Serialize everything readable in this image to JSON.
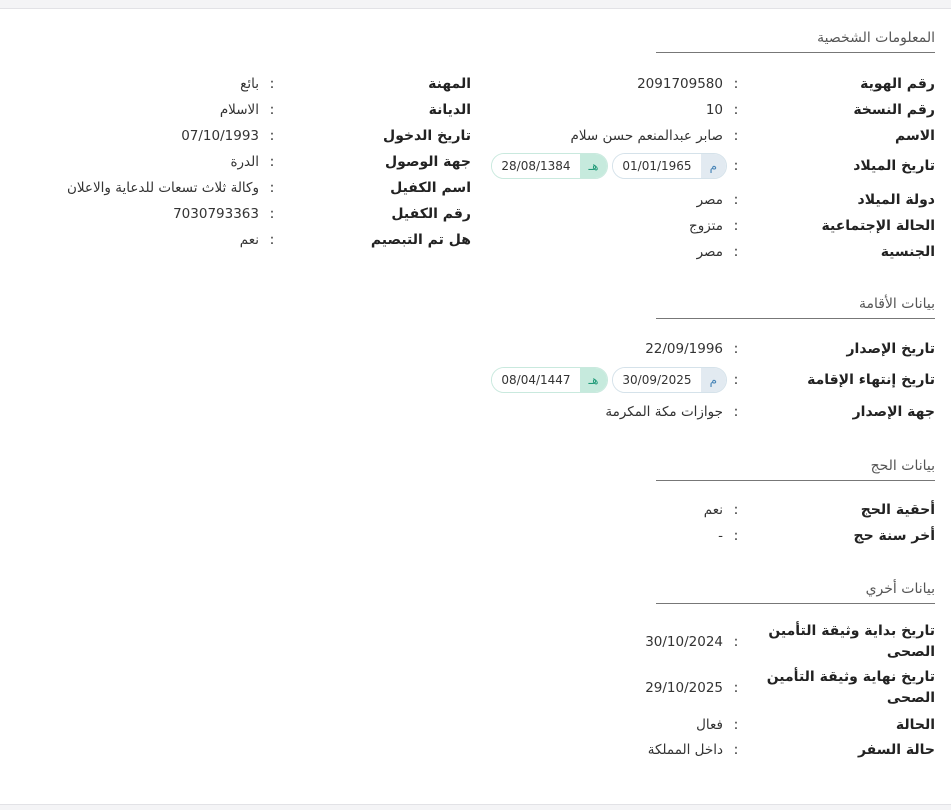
{
  "personal": {
    "title": "المعلومات الشخصية",
    "right": [
      {
        "label": "رقم الهوية",
        "value": "2091709580"
      },
      {
        "label": "رقم النسخة",
        "value": "10"
      },
      {
        "label": "الاسم",
        "value": "صابر عبدالمنعم حسن سلام"
      },
      {
        "label": "تاريخ الميلاد",
        "gregorian": "01/01/1965",
        "hijri": "28/08/1384"
      },
      {
        "label": "دولة الميلاد",
        "value": "مصر"
      },
      {
        "label": "الحالة الإجتماعية",
        "value": "متزوج"
      },
      {
        "label": "الجنسية",
        "value": "مصر"
      }
    ],
    "left": [
      {
        "label": "المهنة",
        "value": "بائع"
      },
      {
        "label": "الديانة",
        "value": "الاسلام"
      },
      {
        "label": "تاريخ الدخول",
        "value": "07/10/1993"
      },
      {
        "label": "جهة الوصول",
        "value": "الدرة"
      },
      {
        "label": "اسم الكفيل",
        "value": "وكالة ثلاث تسعات للدعاية والاعلان"
      },
      {
        "label": "رقم الكفيل",
        "value": "7030793363"
      },
      {
        "label": "هل تم التبصيم",
        "value": "نعم"
      }
    ]
  },
  "residence": {
    "title": "بيانات الأقامة",
    "rows": [
      {
        "label": "تاريخ الإصدار",
        "value": "22/09/1996"
      },
      {
        "label": "تاريخ إنتهاء الإقامة",
        "gregorian": "30/09/2025",
        "hijri": "08/04/1447"
      },
      {
        "label": "جهة الإصدار",
        "value": "جوازات مكة المكرمة"
      }
    ]
  },
  "hajj": {
    "title": "بيانات الحج",
    "rows": [
      {
        "label": "أحقية الحج",
        "value": "نعم"
      },
      {
        "label": "أخر سنة حج",
        "value": "-"
      }
    ]
  },
  "other": {
    "title": "بيانات أخري",
    "rows": [
      {
        "label": "تاريخ بداية وثيقة التأمين الصحى",
        "value": "30/10/2024"
      },
      {
        "label": "تاريخ نهاية وثيقة التأمين الصحى",
        "value": "29/10/2025"
      },
      {
        "label": "الحالة",
        "value": "فعال"
      },
      {
        "label": "حالة السفر",
        "value": "داخل المملكة"
      }
    ]
  },
  "common": {
    "colon": ":",
    "greg_tag": "م",
    "hijri_tag": "هـ"
  }
}
